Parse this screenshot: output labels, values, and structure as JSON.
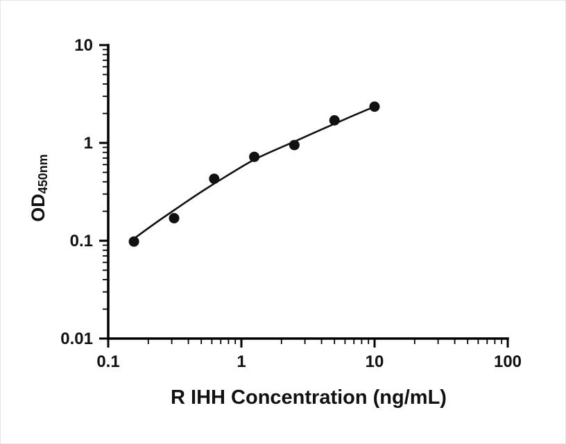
{
  "figure": {
    "background": "#ffffff"
  },
  "chart_data": {
    "type": "scatter",
    "title": "",
    "xlabel": "R IHH Concentration (ng/mL)",
    "ylabel": "OD",
    "ylabel_subscript": "450nm",
    "x_scale": "log",
    "y_scale": "log",
    "xlim": [
      0.1,
      100
    ],
    "ylim": [
      0.01,
      10
    ],
    "x_tick_values": [
      0.1,
      1,
      10,
      100
    ],
    "x_tick_labels": [
      "0.1",
      "1",
      "10",
      "100"
    ],
    "y_tick_values": [
      0.01,
      0.1,
      1,
      10
    ],
    "y_tick_labels": [
      "0.01",
      "0.1",
      "1",
      "10"
    ],
    "grid": false,
    "legend": "none",
    "axis_color": "#000000",
    "text_color": "#111111",
    "series": [
      {
        "name": "standard-curve-points",
        "type": "scatter",
        "marker": "circle-filled",
        "color": "#111111",
        "x": [
          0.156,
          0.3125,
          0.625,
          1.25,
          2.5,
          5,
          10
        ],
        "y": [
          0.098,
          0.17,
          0.43,
          0.72,
          0.95,
          1.7,
          2.35
        ]
      },
      {
        "name": "fitted-curve",
        "type": "line",
        "color": "#111111",
        "x": [
          0.156,
          0.22,
          0.3125,
          0.45,
          0.625,
          0.9,
          1.25,
          1.8,
          2.5,
          3.5,
          5,
          7,
          10
        ],
        "y": [
          0.105,
          0.148,
          0.205,
          0.288,
          0.385,
          0.52,
          0.68,
          0.85,
          1.03,
          1.27,
          1.57,
          1.92,
          2.35
        ]
      }
    ]
  }
}
